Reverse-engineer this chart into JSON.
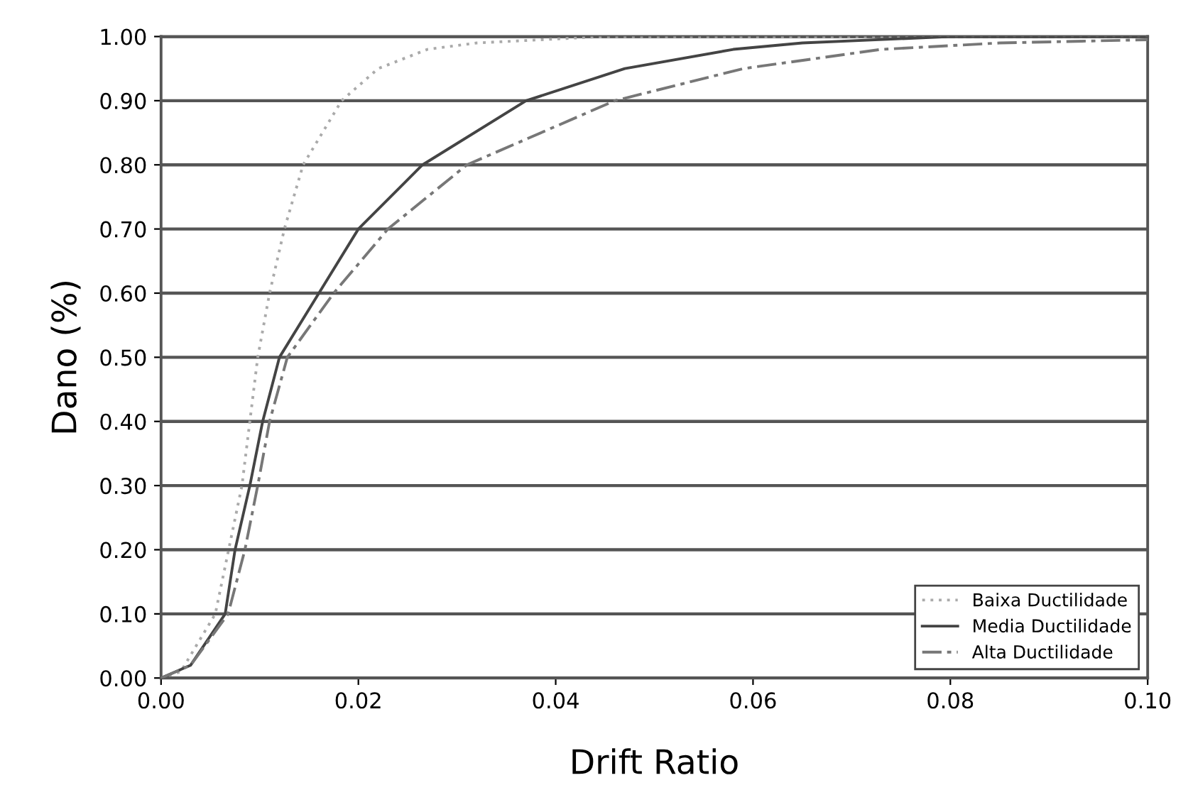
{
  "chart_data": {
    "type": "line",
    "xlabel": "Drift Ratio",
    "ylabel": "Dano (%)",
    "xlim": [
      0,
      0.1
    ],
    "ylim": [
      0,
      1
    ],
    "xticks": [
      {
        "value": 0,
        "label": "0.00"
      },
      {
        "value": 0.02,
        "label": "0.02"
      },
      {
        "value": 0.04,
        "label": "0.04"
      },
      {
        "value": 0.06,
        "label": "0.06"
      },
      {
        "value": 0.08,
        "label": "0.08"
      },
      {
        "value": 0.1,
        "label": "0.10"
      }
    ],
    "yticks": [
      {
        "value": 0,
        "label": "0.00"
      },
      {
        "value": 0.1,
        "label": "0.10"
      },
      {
        "value": 0.2,
        "label": "0.20"
      },
      {
        "value": 0.3,
        "label": "0.30"
      },
      {
        "value": 0.4,
        "label": "0.40"
      },
      {
        "value": 0.5,
        "label": "0.50"
      },
      {
        "value": 0.6,
        "label": "0.60"
      },
      {
        "value": 0.7,
        "label": "0.70"
      },
      {
        "value": 0.8,
        "label": "0.80"
      },
      {
        "value": 0.9,
        "label": "0.90"
      },
      {
        "value": 1,
        "label": "1.00"
      }
    ],
    "grid": "y",
    "legend": "bottom right",
    "marker": "none",
    "series": [
      {
        "name": "Baixa Ductilidade",
        "color": "#aaaaaa",
        "line_style": "dotted",
        "x": [
          0,
          0.002,
          0.0055,
          0.0082,
          0.0098,
          0.011,
          0.0125,
          0.0144,
          0.0183,
          0.022,
          0.027,
          0.032,
          0.045,
          0.1
        ],
        "values": [
          0,
          0.01,
          0.1,
          0.3,
          0.5,
          0.6,
          0.7,
          0.8,
          0.9,
          0.95,
          0.98,
          0.99,
          1.0,
          1.0
        ]
      },
      {
        "name": "Media Ductilidade",
        "color": "#444444",
        "line_style": "solid",
        "x": [
          0,
          0.003,
          0.0065,
          0.0075,
          0.009,
          0.0103,
          0.012,
          0.016,
          0.02,
          0.0265,
          0.037,
          0.047,
          0.058,
          0.065,
          0.08,
          0.1
        ],
        "values": [
          0,
          0.02,
          0.1,
          0.2,
          0.3,
          0.4,
          0.5,
          0.6,
          0.7,
          0.8,
          0.9,
          0.95,
          0.98,
          0.99,
          1.0,
          1.0
        ]
      },
      {
        "name": "Alta Ductilidade",
        "color": "#777777",
        "line_style": "dashed",
        "x": [
          0,
          0.003,
          0.0068,
          0.0085,
          0.0098,
          0.011,
          0.0128,
          0.0175,
          0.023,
          0.031,
          0.046,
          0.059,
          0.073,
          0.085,
          0.1
        ],
        "values": [
          0,
          0.02,
          0.1,
          0.2,
          0.3,
          0.4,
          0.5,
          0.6,
          0.7,
          0.8,
          0.9,
          0.95,
          0.98,
          0.99,
          0.995
        ]
      }
    ]
  }
}
